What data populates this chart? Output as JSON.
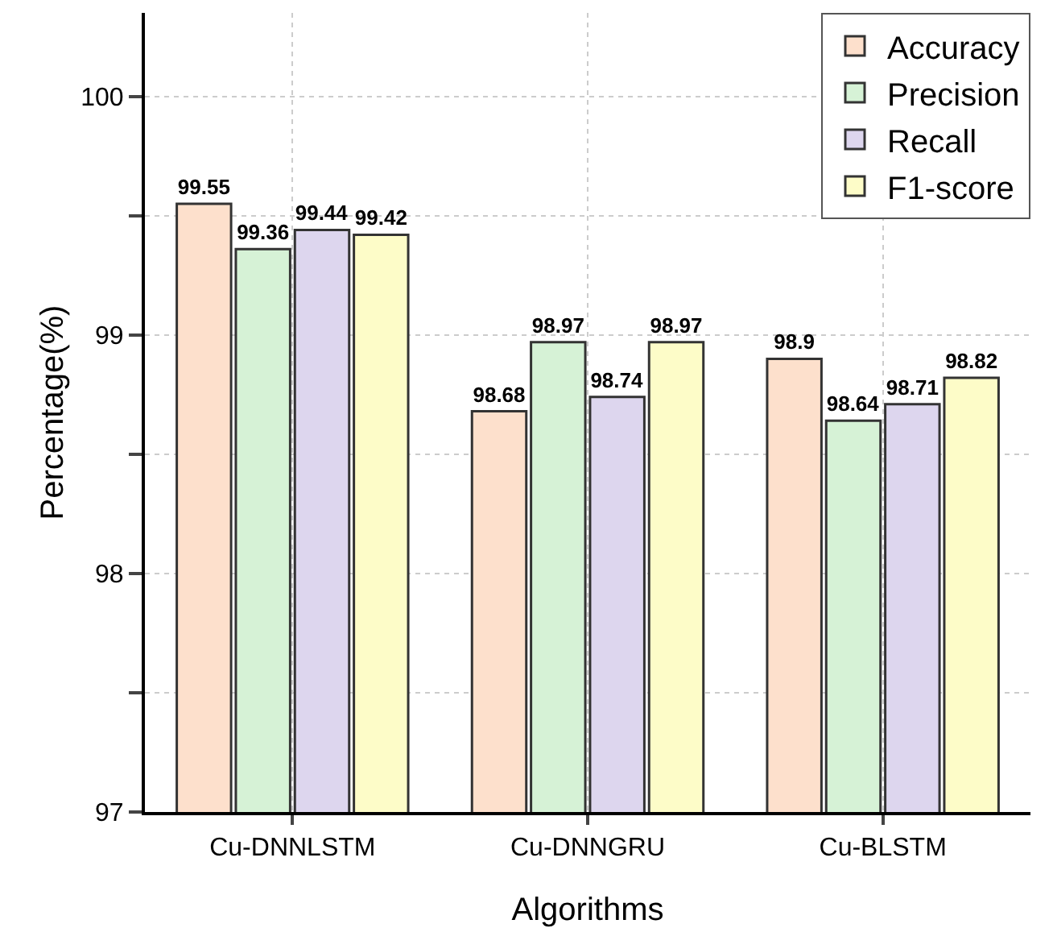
{
  "chart_data": {
    "type": "bar",
    "xlabel": "Algorithms",
    "ylabel": "Percentage(%)",
    "categories": [
      "Cu-DNNLSTM",
      "Cu-DNNGRU",
      "Cu-BLSTM"
    ],
    "series": [
      {
        "name": "Accuracy",
        "color": "#fde0cc",
        "values": [
          99.55,
          98.68,
          98.9
        ]
      },
      {
        "name": "Precision",
        "color": "#d6f2d6",
        "values": [
          99.36,
          98.97,
          98.64
        ]
      },
      {
        "name": "Recall",
        "color": "#ddd6ee",
        "values": [
          99.44,
          98.74,
          98.71
        ]
      },
      {
        "name": "F1-score",
        "color": "#fdfcc8",
        "values": [
          99.42,
          98.97,
          98.82
        ]
      }
    ],
    "ylim": [
      97,
      100.35
    ],
    "yticks": [
      97,
      {
        "value": 97.5,
        "label": null
      },
      98,
      {
        "value": 98.5,
        "label": null
      },
      99,
      {
        "value": 99.5,
        "label": null
      },
      100
    ],
    "grid": true,
    "legend": "top right",
    "data_labels": true
  }
}
